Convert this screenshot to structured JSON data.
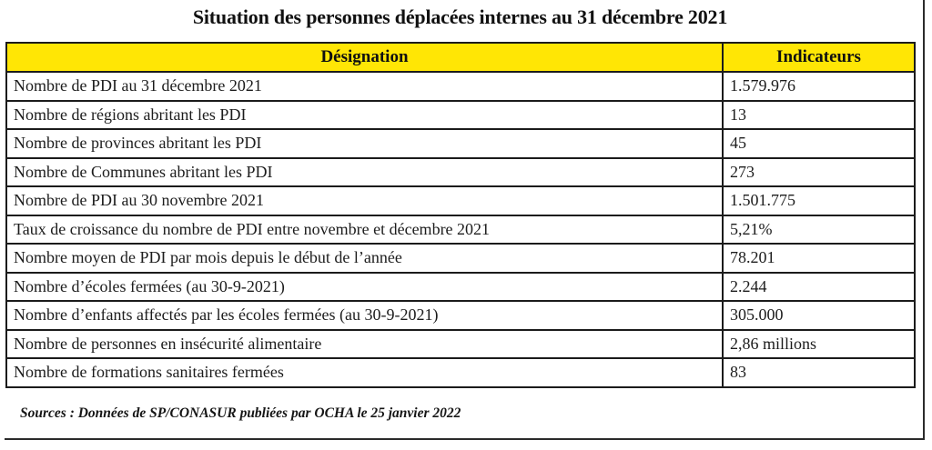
{
  "title": "Situation des personnes déplacées internes au 31 décembre 2021",
  "colors": {
    "header_bg": "#ffe605",
    "border": "#1b1b1b",
    "text": "#1c1c1c"
  },
  "table": {
    "columns": [
      "Désignation",
      "Indicateurs"
    ],
    "rows": [
      {
        "designation": "Nombre de PDI au 31 décembre 2021",
        "indicateur": "1.579.976"
      },
      {
        "designation": "Nombre de régions abritant les PDI",
        "indicateur": "13"
      },
      {
        "designation": "Nombre de provinces abritant les PDI",
        "indicateur": "45"
      },
      {
        "designation": "Nombre de Communes abritant les PDI",
        "indicateur": "273"
      },
      {
        "designation": "Nombre de PDI au 30 novembre 2021",
        "indicateur": "1.501.775"
      },
      {
        "designation": "Taux de croissance du nombre de PDI entre novembre et décembre 2021",
        "indicateur": "5,21%"
      },
      {
        "designation": "Nombre moyen de PDI par mois depuis le début de l’année",
        "indicateur": "78.201"
      },
      {
        "designation": "Nombre d’écoles fermées (au 30-9-2021)",
        "indicateur": "2.244"
      },
      {
        "designation": "Nombre d’enfants affectés par les écoles fermées (au 30-9-2021)",
        "indicateur": "305.000"
      },
      {
        "designation": "Nombre de personnes en insécurité alimentaire",
        "indicateur": "2,86 millions"
      },
      {
        "designation": "Nombre de formations sanitaires fermées",
        "indicateur": "83"
      }
    ]
  },
  "source_note": "Sources : Données de SP/CONASUR publiées par OCHA le 25 janvier 2022"
}
